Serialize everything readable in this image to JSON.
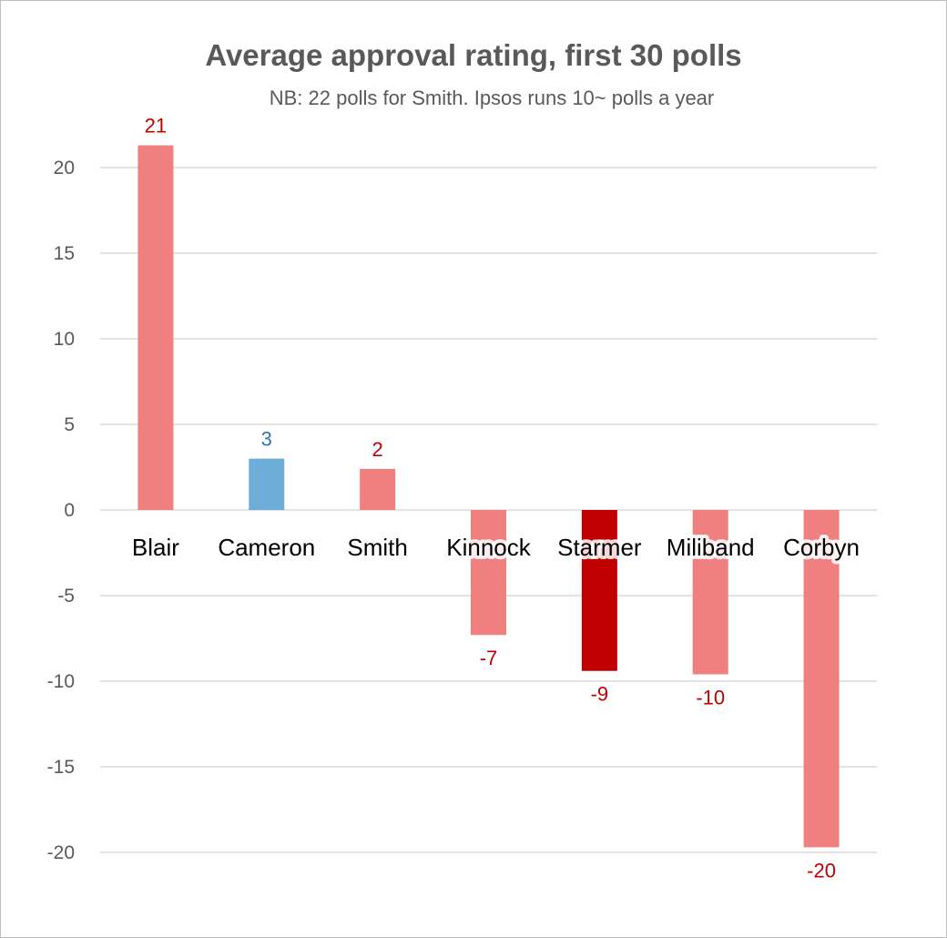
{
  "chart_data": {
    "type": "bar",
    "title": "Average approval rating, first 30 polls",
    "subtitle": "NB: 22 polls for Smith. Ipsos runs 10~ polls a year",
    "xlabel": "",
    "ylabel": "",
    "ylim": [
      -20,
      20
    ],
    "yticks": [
      "20",
      "15",
      "10",
      "5",
      "0",
      "-5",
      "-10",
      "-15",
      "-20"
    ],
    "grid": true,
    "legend": "none",
    "categories": [
      "Blair",
      "Cameron",
      "Smith",
      "Kinnock",
      "Starmer",
      "Miliband",
      "Corbyn"
    ],
    "values": [
      21.3,
      3.0,
      2.4,
      -7.3,
      -9.4,
      -9.6,
      -19.7
    ],
    "data_labels": [
      "21",
      "3",
      "2",
      "-7",
      "-9",
      "-10",
      "-20"
    ],
    "colors": [
      "#f08080",
      "#6fadd9",
      "#f08080",
      "#f08080",
      "#c00000",
      "#f08080",
      "#f08080"
    ],
    "label_colors": [
      "#c00000",
      "#2e75b6",
      "#c00000",
      "#c00000",
      "#c00000",
      "#c00000",
      "#c00000"
    ]
  }
}
